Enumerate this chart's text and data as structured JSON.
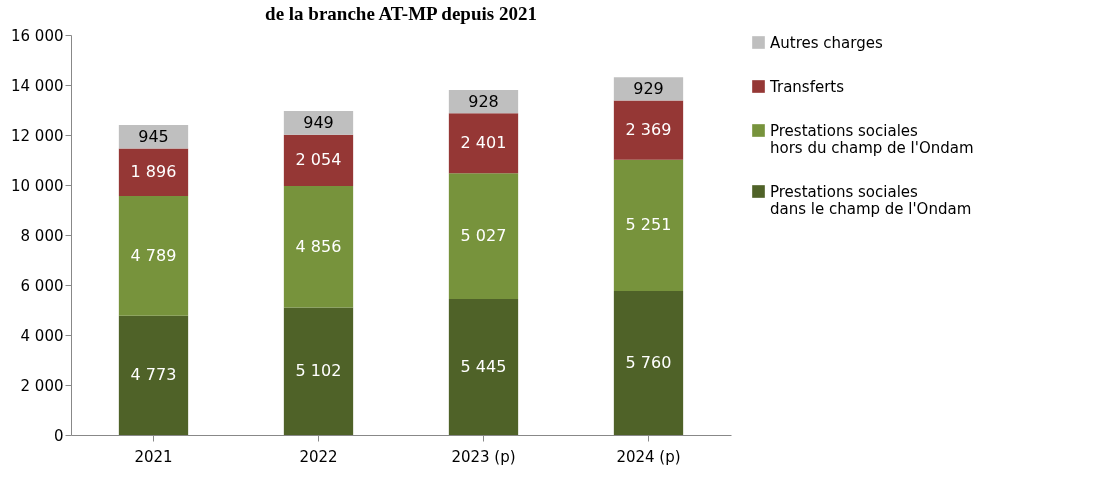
{
  "chart_data": {
    "type": "bar",
    "title": "de la branche AT-MP depuis 2021",
    "categories": [
      "2021",
      "2022",
      "2023 (p)",
      "2024 (p)"
    ],
    "stacked": true,
    "legend": "right",
    "grid": false,
    "ylim": [
      0,
      16000
    ],
    "yticks": [
      {
        "value": 0,
        "label": "0"
      },
      {
        "value": 2000,
        "label": "2 000"
      },
      {
        "value": 4000,
        "label": "4 000"
      },
      {
        "value": 6000,
        "label": "6 000"
      },
      {
        "value": 8000,
        "label": "8 000"
      },
      {
        "value": 10000,
        "label": "10 000"
      },
      {
        "value": 12000,
        "label": "12 000"
      },
      {
        "value": 14000,
        "label": "14 000"
      },
      {
        "value": 16000,
        "label": "16 000"
      }
    ],
    "series": [
      {
        "name": "Prestations sociales dans le champ de l'Ondam",
        "color": "#4f6228",
        "values": [
          4773,
          5102,
          5445,
          5760
        ],
        "value_labels": [
          "4 773",
          "5 102",
          "5 445",
          "5 760"
        ]
      },
      {
        "name": "Prestations sociales hors du champ de l'Ondam",
        "color": "#77933c",
        "values": [
          4789,
          4856,
          5027,
          5251
        ],
        "value_labels": [
          "4 789",
          "4 856",
          "5 027",
          "5 251"
        ]
      },
      {
        "name": "Transferts",
        "color": "#953735",
        "values": [
          1896,
          2054,
          2401,
          2369
        ],
        "value_labels": [
          "1 896",
          "2 054",
          "2 401",
          "2 369"
        ]
      },
      {
        "name": "Autres charges",
        "color": "#bfbfbf",
        "values": [
          945,
          949,
          928,
          929
        ],
        "value_labels": [
          "945",
          "949",
          "928",
          "929"
        ]
      }
    ]
  }
}
